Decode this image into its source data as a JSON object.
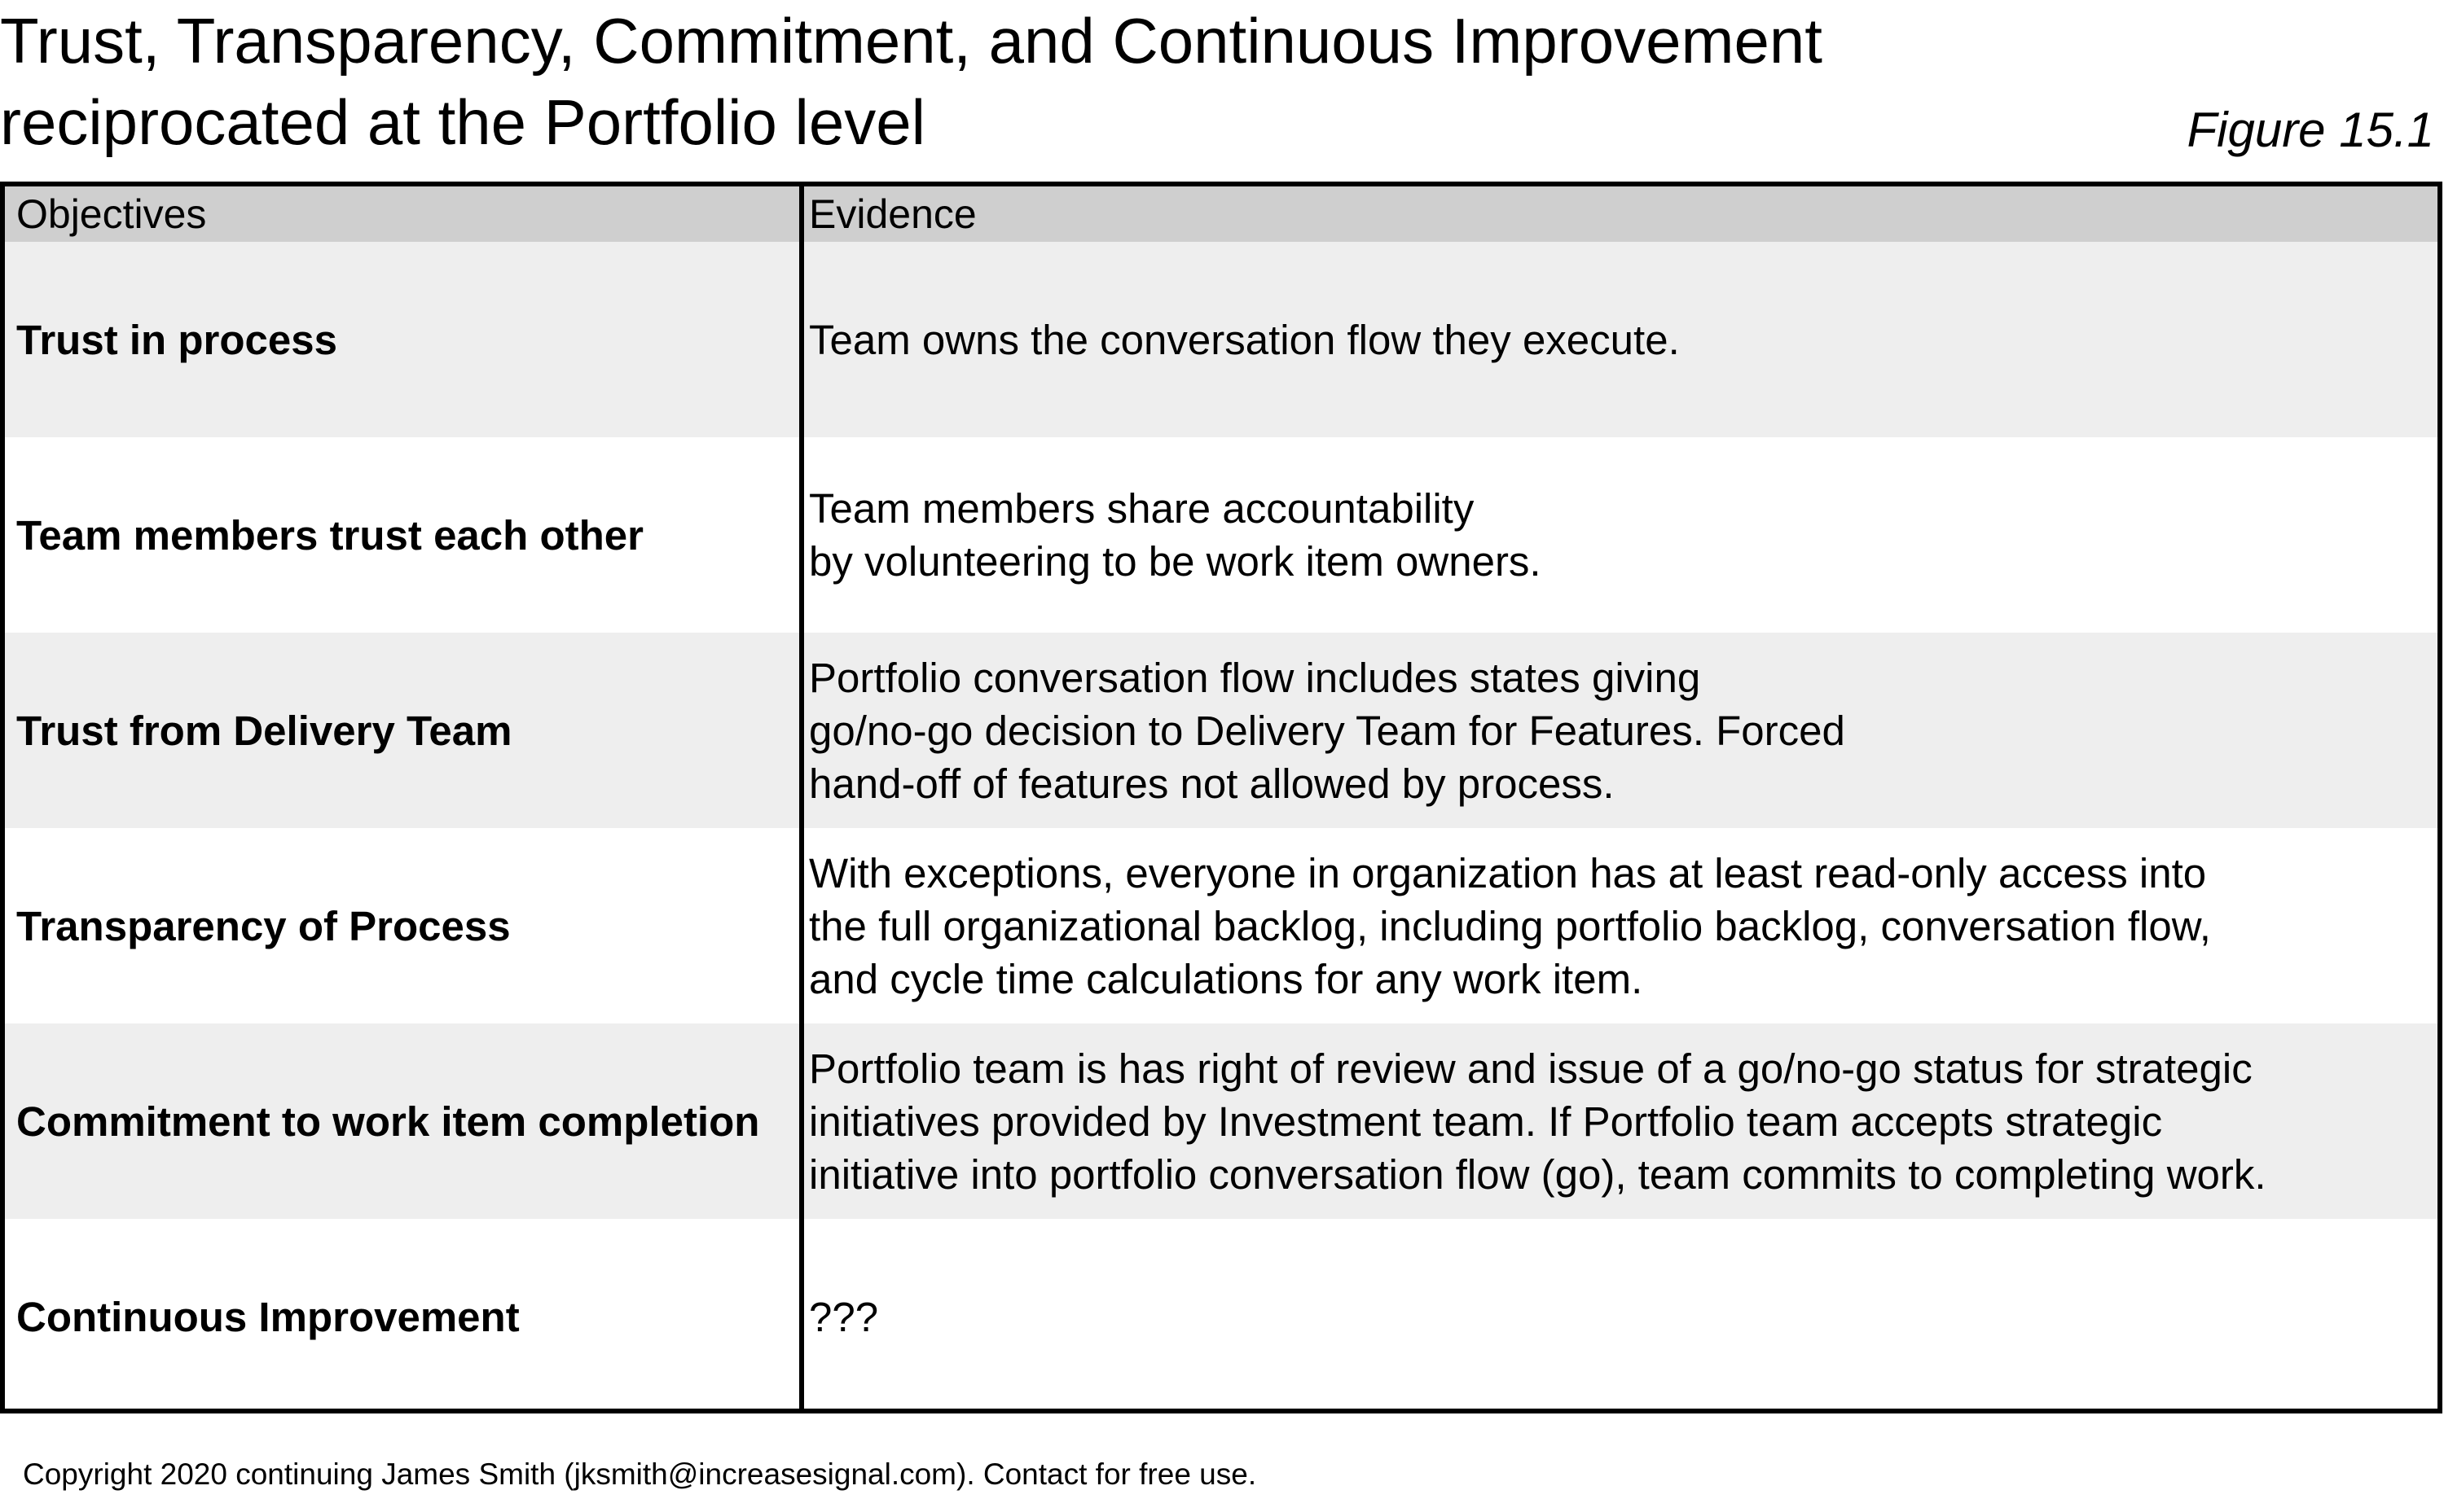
{
  "title": {
    "line1": "Trust, Transparency, Commitment, and Continuous Improvement",
    "line2": "reciprocated at the Portfolio level"
  },
  "figure_label": "Figure 15.1",
  "table": {
    "headers": {
      "objectives": "Objectives",
      "evidence": "Evidence"
    },
    "rows": [
      {
        "objective": "Trust in process",
        "evidence": [
          "Team owns the conversation flow they execute."
        ]
      },
      {
        "objective": "Team members trust each other",
        "evidence": [
          "Team members share accountability",
          "by volunteering to be work item owners."
        ]
      },
      {
        "objective": "Trust from Delivery Team",
        "evidence": [
          "Portfolio conversation flow includes states giving",
          "go/no-go decision to Delivery Team for Features. Forced",
          "hand-off of features not allowed by process."
        ]
      },
      {
        "objective": "Transparency of Process",
        "evidence": [
          "With exceptions, everyone in organization has at least read-only access into",
          "the full organizational backlog, including portfolio backlog, conversation flow,",
          "and cycle time calculations for any work item."
        ]
      },
      {
        "objective": "Commitment to work item completion",
        "evidence": [
          "Portfolio team is has right of review and issue of a go/no-go status for strategic",
          "initiatives provided by Investment team. If Portfolio team accepts strategic",
          "initiative into portfolio conversation flow (go), team commits to completing work."
        ]
      },
      {
        "objective": "Continuous Improvement",
        "evidence": [
          "???"
        ]
      }
    ]
  },
  "copyright": "Copyright 2020 continuing James Smith (jksmith@increasesignal.com). Contact for free use.",
  "colors": {
    "header_bg": "#cfcfcf",
    "shaded_row_bg": "#eeeeee",
    "plain_row_bg": "#ffffff",
    "border": "#000000"
  }
}
